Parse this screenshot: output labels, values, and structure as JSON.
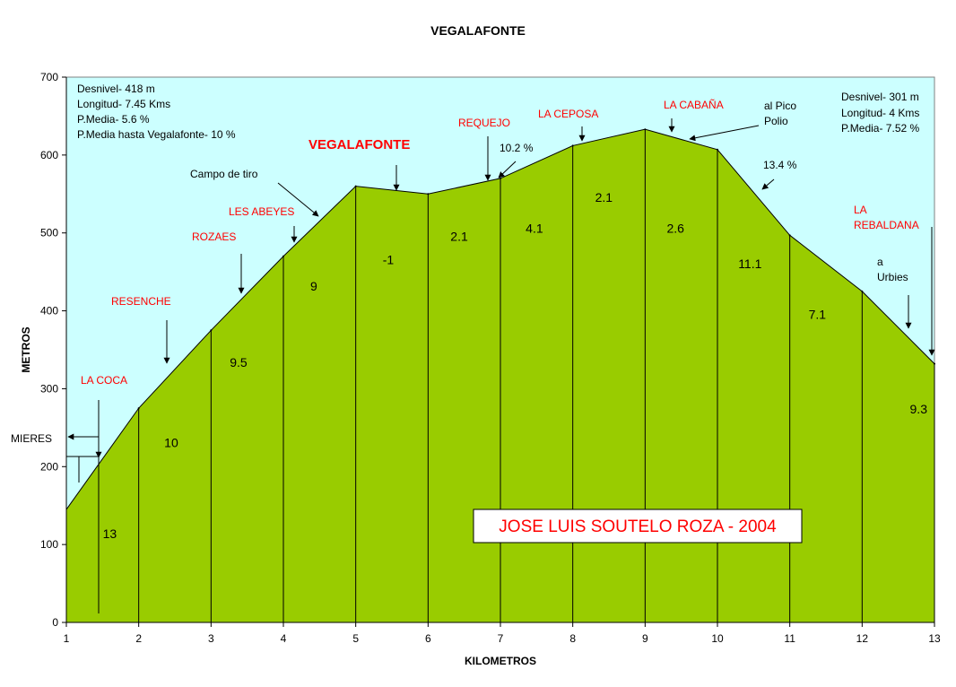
{
  "chart_data": {
    "type": "area",
    "title": "VEGALAFONTE",
    "xlabel": "KILOMETROS",
    "ylabel": "METROS",
    "xlim": [
      1,
      13
    ],
    "ylim": [
      0,
      700
    ],
    "x_ticks": [
      "1",
      "2",
      "3",
      "4",
      "5",
      "6",
      "7",
      "8",
      "9",
      "10",
      "11",
      "12",
      "13"
    ],
    "y_ticks": [
      "0",
      "100",
      "200",
      "300",
      "400",
      "500",
      "600",
      "700"
    ],
    "x": [
      1,
      2,
      3,
      4,
      5,
      6,
      7,
      8,
      9,
      10,
      11,
      12,
      13
    ],
    "values": [
      145,
      275,
      375,
      470,
      560,
      550,
      570,
      612,
      633,
      607,
      497,
      425,
      332
    ],
    "fill_color": "#99cc00",
    "plot_background": "#ccffff",
    "grid": false,
    "segment_labels": [
      {
        "text": "13",
        "x": 1.6,
        "y": 108
      },
      {
        "text": "10",
        "x": 2.45,
        "y": 225
      },
      {
        "text": "9.5",
        "x": 3.38,
        "y": 328
      },
      {
        "text": "9",
        "x": 4.42,
        "y": 426
      },
      {
        "text": "-1",
        "x": 5.45,
        "y": 460
      },
      {
        "text": "2.1",
        "x": 6.43,
        "y": 490
      },
      {
        "text": "4.1",
        "x": 7.47,
        "y": 500
      },
      {
        "text": "2.1",
        "x": 8.43,
        "y": 540
      },
      {
        "text": "2.6",
        "x": 9.42,
        "y": 500
      },
      {
        "text": "11.1",
        "x": 10.45,
        "y": 455
      },
      {
        "text": "7.1",
        "x": 11.38,
        "y": 390
      },
      {
        "text": "9.3",
        "x": 12.78,
        "y": 268
      }
    ],
    "info_left": [
      "Desnivel- 418 m",
      "Longitud- 7.45 Kms",
      "P.Media-  5.6  %",
      "P.Media hasta  Vegalafonte- 10 %"
    ],
    "info_right": [
      "Desnivel- 301 m",
      "Longitud- 4 Kms",
      "P.Media- 7.52 %"
    ],
    "places": {
      "la_coca": "LA COCA",
      "mieres": "MIERES",
      "resenche": "RESENCHE",
      "rozaes": "ROZAES",
      "les_abeyes": "LES ABEYES",
      "campo_de_tiro": "Campo de tiro",
      "vegalafonte": "VEGALAFONTE",
      "requejo": "REQUEJO",
      "grade_102": "10.2 %",
      "la_ceposa": "LA CEPOSA",
      "la_cabana": "LA CABAÑA",
      "al_pico": "al Pico",
      "polio": "Polio",
      "grade_134": "13.4 %",
      "la": "LA",
      "rebaldana": "REBALDANA",
      "a": "a",
      "urbies": "Urbies"
    },
    "author": "JOSE LUIS SOUTELO ROZA - 2004"
  }
}
